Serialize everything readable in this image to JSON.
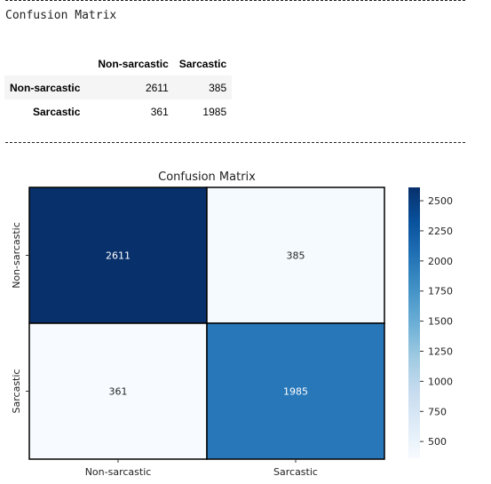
{
  "output": {
    "heading": "Confusion Matrix",
    "table": {
      "columns": [
        "Non-sarcastic",
        "Sarcastic"
      ],
      "rows": [
        {
          "label": "Non-sarcastic",
          "values": [
            "2611",
            "385"
          ]
        },
        {
          "label": "Sarcastic",
          "values": [
            "361",
            "1985"
          ]
        }
      ]
    }
  },
  "chart_data": {
    "type": "heatmap",
    "title": "Confusion Matrix",
    "x_categories": [
      "Non-sarcastic",
      "Sarcastic"
    ],
    "y_categories": [
      "Non-sarcastic",
      "Sarcastic"
    ],
    "values": [
      [
        2611,
        385
      ],
      [
        361,
        1985
      ]
    ],
    "colormap": "Blues",
    "colorbar": {
      "min": 361,
      "max": 2611,
      "ticks": [
        500,
        750,
        1000,
        1250,
        1500,
        1750,
        2000,
        2250,
        2500
      ]
    },
    "colors": {
      "low": "#f7fbff",
      "high": "#08306b",
      "grid": "#000000"
    }
  }
}
